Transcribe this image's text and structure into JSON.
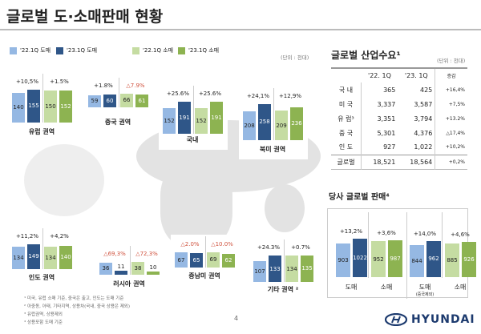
{
  "title": "글로벌 도·소매판매 현황",
  "legend": [
    {
      "label": "'22.1Q 도매",
      "color": "#95b8e3"
    },
    {
      "label": "'23.1Q 도매",
      "color": "#2f5688"
    },
    {
      "label": "'22.1Q 소매",
      "color": "#c5dca2"
    },
    {
      "label": "'23.1Q 소매",
      "color": "#8db351"
    }
  ],
  "unit": "(단위 : 천대)",
  "regions": [
    {
      "name": "유럽 권역",
      "values": [
        140,
        155,
        150,
        152
      ],
      "changes": [
        "+10,5%",
        "+1.5%"
      ]
    },
    {
      "name": "중국 권역",
      "values": [
        59,
        60,
        66,
        61
      ],
      "changes": [
        "+1.8%",
        "△7.9%"
      ]
    },
    {
      "name": "국내",
      "values": [
        152,
        191,
        152,
        191
      ],
      "changes": [
        "+25.6%",
        "+25.6%"
      ]
    },
    {
      "name": "북미 권역",
      "values": [
        208,
        258,
        209,
        236
      ],
      "changes": [
        "+24,1%",
        "+12,9%"
      ]
    },
    {
      "name": "인도 권역",
      "values": [
        134,
        149,
        134,
        140
      ],
      "changes": [
        "+11,2%",
        "+4,2%"
      ]
    },
    {
      "name": "러시아 권역",
      "values": [
        36,
        11,
        38,
        10
      ],
      "changes": [
        "△69,3%",
        "△72,3%"
      ]
    },
    {
      "name": "중남미 권역",
      "values": [
        67,
        65,
        69,
        62
      ],
      "changes": [
        "△2.0%",
        "△10.0%"
      ]
    },
    {
      "name": "기타 권역 ²",
      "values": [
        107,
        133,
        134,
        135
      ],
      "changes": [
        "+24.3%",
        "+0.7%"
      ]
    }
  ],
  "footnotes": [
    "¹ 미국, 유럽 소매 기준, 중국은 출고, 인도는 도매 기준",
    "² 아중동, 아태, 기타지역, 상용차(국내, 중국 상용은 제외)",
    "³ 유럽권역, 상용제외",
    "⁴ 상용포함 도매 기준"
  ],
  "page_number": "4",
  "demand": {
    "title": "글로벌 산업수요¹",
    "unit": "(단위 : 천대)",
    "headers": [
      "",
      "'22. 1Q",
      "'23. 1Q",
      "증감"
    ],
    "rows": [
      [
        "국 내",
        "365",
        "425",
        "+16,4%"
      ],
      [
        "미 국",
        "3,337",
        "3,587",
        "+7,5%"
      ],
      [
        "유 럽³",
        "3,351",
        "3,794",
        "+13.2%"
      ],
      [
        "중 국",
        "5,301",
        "4,376",
        "△17,4%"
      ],
      [
        "인 도",
        "927",
        "1,022",
        "+10,2%"
      ],
      [
        "글로벌",
        "18,521",
        "18,564",
        "+0,2%"
      ]
    ]
  },
  "sales": {
    "title": "당사 글로벌 판매⁴",
    "groups": [
      {
        "values": [
          903,
          1022
        ],
        "change": "+13,2%",
        "label": "도매",
        "colors": [
          "#95b8e3",
          "#2f5688"
        ]
      },
      {
        "values": [
          952,
          987
        ],
        "change": "+3,6%",
        "label": "소매",
        "colors": [
          "#c5dca2",
          "#8db351"
        ]
      },
      {
        "values": [
          844,
          962
        ],
        "change": "+14,0%",
        "label": "도매",
        "sub": "(중국제외)",
        "colors": [
          "#95b8e3",
          "#2f5688"
        ]
      },
      {
        "values": [
          885,
          926
        ],
        "change": "+4,6%",
        "label": "소매",
        "colors": [
          "#c5dca2",
          "#8db351"
        ]
      }
    ]
  },
  "brand": "HYUNDAI",
  "negative_color": "#d0533f"
}
